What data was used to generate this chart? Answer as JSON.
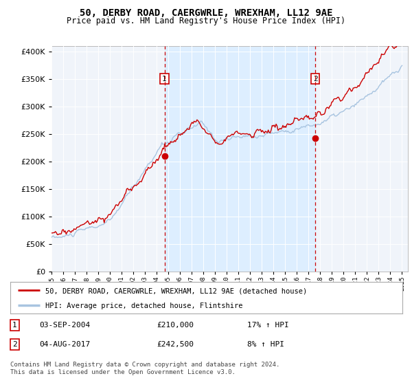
{
  "title": "50, DERBY ROAD, CAERGWRLE, WREXHAM, LL12 9AE",
  "subtitle": "Price paid vs. HM Land Registry's House Price Index (HPI)",
  "sale1": {
    "date_num": 2004.67,
    "price": 210000,
    "label": "1",
    "date_str": "03-SEP-2004",
    "pct": "17%"
  },
  "sale2": {
    "date_num": 2017.58,
    "price": 242500,
    "label": "2",
    "date_str": "04-AUG-2017",
    "pct": "8%"
  },
  "legend_line1": "50, DERBY ROAD, CAERGWRLE, WREXHAM, LL12 9AE (detached house)",
  "legend_line2": "HPI: Average price, detached house, Flintshire",
  "footnote": "Contains HM Land Registry data © Crown copyright and database right 2024.\nThis data is licensed under the Open Government Licence v3.0.",
  "hpi_color": "#a8c4e0",
  "price_color": "#cc0000",
  "shade_color": "#ddeeff",
  "bg_color": "#f0f4fa",
  "ylim": [
    0,
    410000
  ],
  "xlim_start": 1995.0,
  "xlim_end": 2025.5,
  "yticks": [
    0,
    50000,
    100000,
    150000,
    200000,
    250000,
    300000,
    350000,
    400000
  ]
}
